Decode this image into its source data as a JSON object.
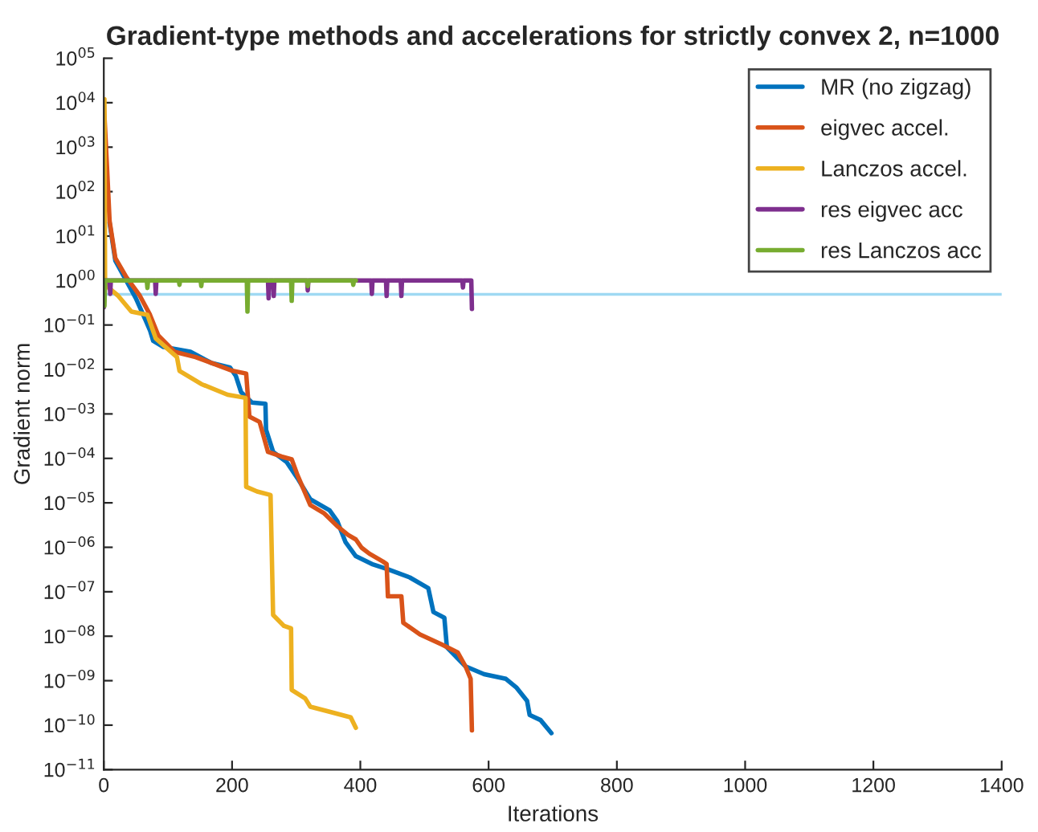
{
  "chart_data": {
    "type": "line",
    "title": "Gradient-type methods and accelerations for strictly convex 2, n=1000",
    "xlabel": "Iterations",
    "ylabel": "Gradient norm",
    "log": "y",
    "grid": false,
    "legend": "top right",
    "xlim": [
      0,
      1400
    ],
    "xticks": [
      0,
      200,
      400,
      600,
      800,
      1000,
      1200,
      1400
    ],
    "ylim": [
      1e-11,
      100000.0
    ],
    "yticks": [
      {
        "value": 100000.0,
        "label": "10$^{05}$"
      },
      {
        "value": 10000.0,
        "label": "10$^{04}$"
      },
      {
        "value": 1000.0,
        "label": "10$^{03}$"
      },
      {
        "value": 100.0,
        "label": "10$^{02}$"
      },
      {
        "value": 10.0,
        "label": "10$^{01}$"
      },
      {
        "value": 1,
        "label": "10$^{00}$"
      },
      {
        "value": 0.1,
        "label": "10$^{−01}$"
      },
      {
        "value": 0.01,
        "label": "10$^{−02}$"
      },
      {
        "value": 0.001,
        "label": "10$^{−03}$"
      },
      {
        "value": 0.0001,
        "label": "10$^{−04}$"
      },
      {
        "value": 1e-05,
        "label": "10$^{−05}$"
      },
      {
        "value": 1e-06,
        "label": "10$^{−06}$"
      },
      {
        "value": 1e-07,
        "label": "10$^{−07}$"
      },
      {
        "value": 1e-08,
        "label": "10$^{−08}$"
      },
      {
        "value": 1e-09,
        "label": "10$^{−09}$"
      },
      {
        "value": 1e-10,
        "label": "10$^{−10}$"
      },
      {
        "value": 1e-11,
        "label": "10$^{−11}$"
      }
    ],
    "ref_lines": [
      {
        "axis": "y",
        "value": 0.49,
        "color": "#9fd9f3"
      }
    ],
    "series": [
      {
        "name": "MR (no zigzag)",
        "color": "#0072bd",
        "x": [
          9,
          18,
          35,
          50,
          65,
          72,
          77,
          93,
          135,
          168,
          197,
          206,
          214,
          231,
          252,
          253,
          264,
          285,
          302,
          322,
          352,
          364,
          377,
          393,
          418,
          443,
          477,
          506,
          514,
          531,
          535,
          564,
          593,
          627,
          643,
          660,
          664,
          681,
          698
        ],
        "values": [
          20,
          2.8,
          1.0,
          0.4,
          0.13,
          0.076,
          0.044,
          0.032,
          0.025,
          0.014,
          0.011,
          0.0071,
          0.0031,
          0.0018,
          0.0017,
          0.00044,
          0.00014,
          8.3e-05,
          3.6e-05,
          1.2e-05,
          6.8e-06,
          3.9e-06,
          1.3e-06,
          6.3e-07,
          4.2e-07,
          3.2e-07,
          2.1e-07,
          1.2e-07,
          3.5e-08,
          2.6e-08,
          5.6e-09,
          2.1e-09,
          1.4e-09,
          1.1e-09,
          7.1e-10,
          3.5e-10,
          1.7e-10,
          1.3e-10,
          6.6e-11
        ]
      },
      {
        "name": "eigvec accel.",
        "color": "#d95319",
        "x": [
          0,
          5,
          9,
          18,
          35,
          56,
          72,
          85,
          110,
          143,
          201,
          222,
          227,
          243,
          256,
          277,
          293,
          302,
          322,
          343,
          364,
          381,
          393,
          402,
          414,
          435,
          441,
          443,
          464,
          467,
          493,
          527,
          552,
          564,
          572,
          574
        ],
        "values": [
          10000.0,
          360,
          22,
          3.2,
          1.2,
          0.46,
          0.17,
          0.058,
          0.025,
          0.019,
          0.0093,
          0.0081,
          0.00087,
          0.00066,
          0.00014,
          0.00011,
          9.5e-05,
          4.2e-05,
          8.9e-06,
          5.9e-06,
          3e-06,
          1.9e-06,
          1.5e-06,
          9.8e-07,
          7.2e-07,
          4.8e-07,
          4.2e-07,
          7.9e-08,
          7.9e-08,
          2e-08,
          1.1e-08,
          6.5e-09,
          4.3e-09,
          2.1e-09,
          1.1e-09,
          7.6e-11
        ]
      },
      {
        "name": "Lanczos accel.",
        "color": "#edb120",
        "x": [
          0,
          1,
          2,
          22,
          43,
          68,
          81,
          114,
          118,
          152,
          193,
          221,
          222,
          239,
          260,
          264,
          281,
          292,
          293,
          314,
          322,
          352,
          385,
          393
        ],
        "values": [
          12000.0,
          12000.0,
          0.8,
          0.46,
          0.2,
          0.17,
          0.05,
          0.019,
          0.0093,
          0.0047,
          0.0027,
          0.0023,
          2.3e-05,
          1.8e-05,
          1.5e-05,
          3e-08,
          1.7e-08,
          1.5e-08,
          6.2e-10,
          4e-10,
          2.6e-10,
          2e-10,
          1.5e-10,
          8.7e-11
        ]
      },
      {
        "name": "res eigvec acc",
        "color": "#7e2f8e",
        "x": [
          0,
          2,
          9,
          10,
          11,
          80,
          81,
          82,
          256,
          257,
          258,
          264,
          265,
          266,
          317,
          318,
          319,
          417,
          418,
          419,
          440,
          441,
          442,
          463,
          464,
          465,
          559,
          560,
          561,
          573,
          574
        ],
        "values": [
          0.25,
          1,
          1,
          0.5,
          1,
          1,
          0.5,
          1,
          1,
          0.4,
          1,
          1,
          0.45,
          1,
          1,
          0.6,
          1,
          1,
          0.5,
          1,
          1,
          0.45,
          1,
          1,
          0.45,
          1,
          1,
          0.7,
          1,
          1,
          0.23
        ]
      },
      {
        "name": "res Lanczos acc",
        "color": "#77ac30",
        "x": [
          0,
          1,
          2,
          67,
          68,
          69,
          117,
          118,
          119,
          151,
          152,
          153,
          223,
          224,
          225,
          292,
          293,
          294,
          317,
          318,
          319,
          388,
          389,
          390,
          393
        ],
        "values": [
          1,
          0.27,
          1,
          1,
          0.68,
          1,
          1,
          0.8,
          1,
          1,
          0.75,
          1,
          1,
          0.2,
          1,
          1,
          0.35,
          1,
          1,
          0.75,
          1,
          1,
          0.8,
          1,
          1
        ]
      }
    ]
  }
}
